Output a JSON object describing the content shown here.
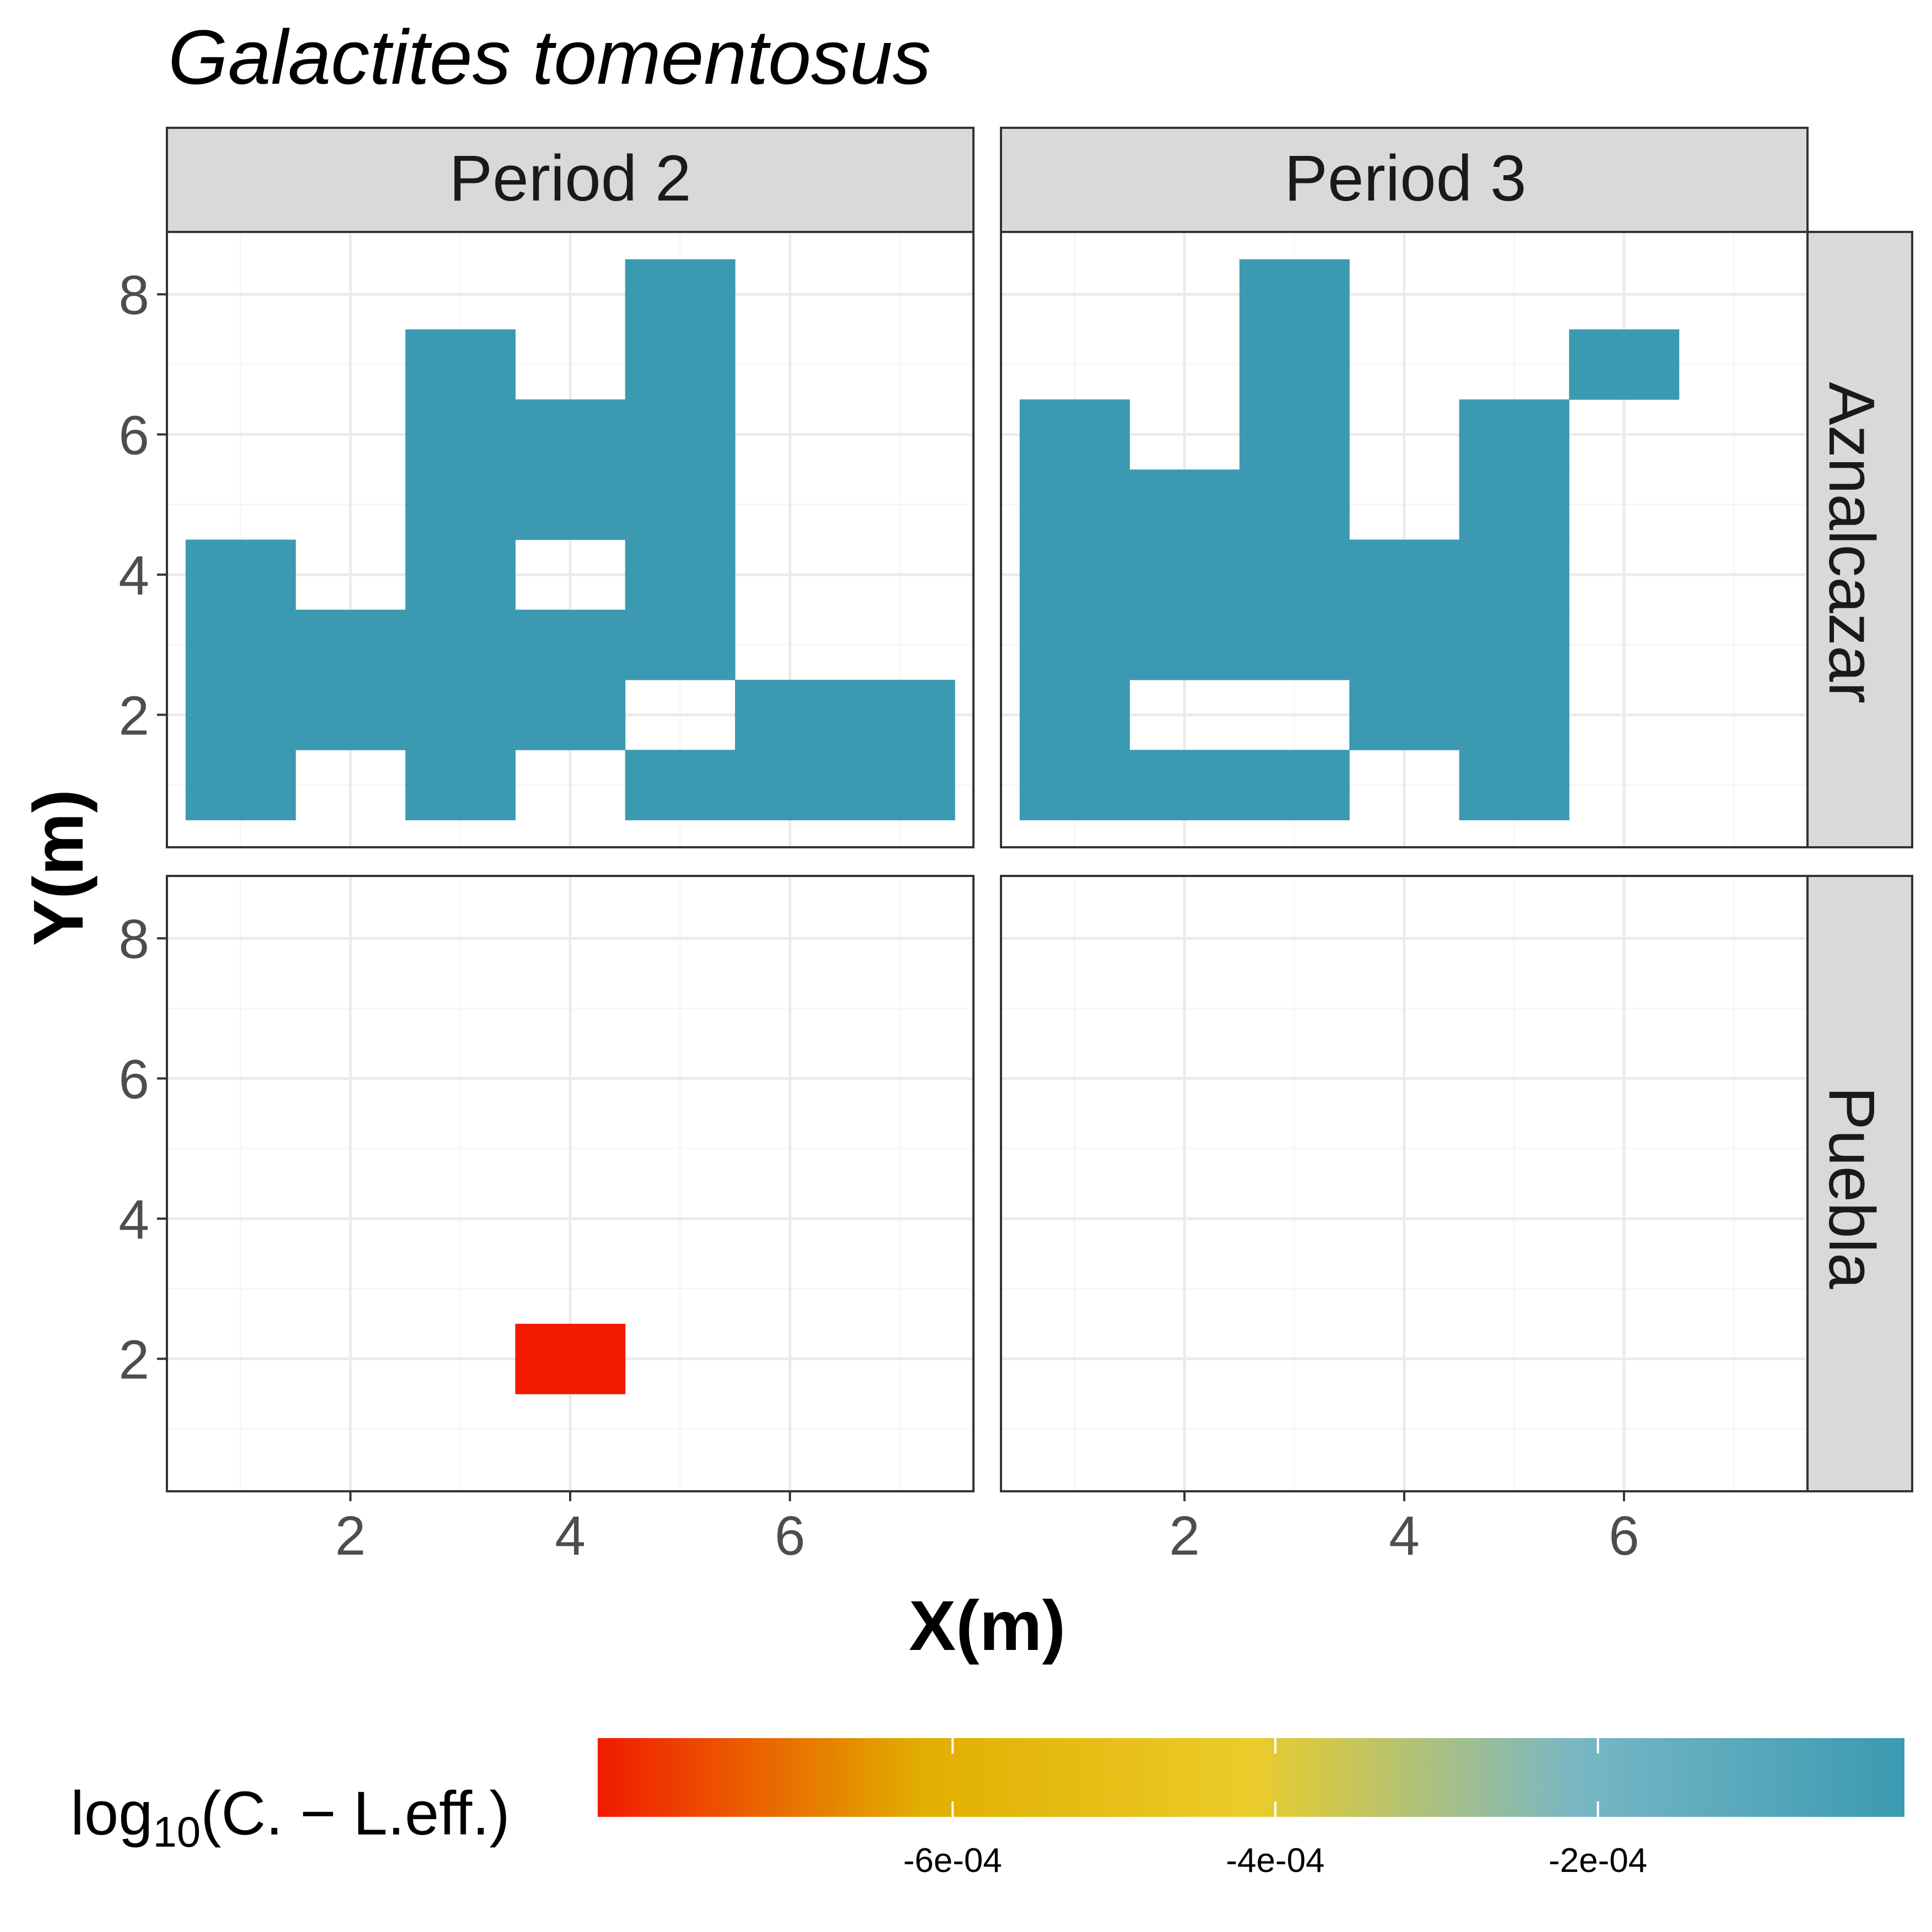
{
  "chart_data": {
    "type": "heatmap",
    "title": "Galactites tomentosus",
    "xlabel": "X(m)",
    "ylabel": "Y(m)",
    "x_ticks": [
      2,
      4,
      6
    ],
    "y_ticks": [
      2,
      4,
      6,
      8
    ],
    "xlim": [
      0.33,
      7.67
    ],
    "ylim": [
      0.11,
      8.89
    ],
    "grid": true,
    "cols": [
      "Period 2",
      "Period 3"
    ],
    "rows": [
      "Aznalcazar",
      "Puebla"
    ],
    "panels": [
      {
        "col": "Period 2",
        "row": "Aznalcazar",
        "cells": [
          [
            1,
            1
          ],
          [
            1,
            2
          ],
          [
            1,
            3
          ],
          [
            1,
            4
          ],
          [
            2,
            2
          ],
          [
            2,
            3
          ],
          [
            3,
            1
          ],
          [
            3,
            2
          ],
          [
            3,
            3
          ],
          [
            3,
            4
          ],
          [
            3,
            5
          ],
          [
            3,
            6
          ],
          [
            3,
            7
          ],
          [
            4,
            2
          ],
          [
            4,
            3
          ],
          [
            4,
            5
          ],
          [
            4,
            6
          ],
          [
            5,
            1
          ],
          [
            5,
            3
          ],
          [
            5,
            4
          ],
          [
            5,
            5
          ],
          [
            5,
            6
          ],
          [
            5,
            7
          ],
          [
            5,
            8
          ],
          [
            6,
            1
          ],
          [
            6,
            2
          ],
          [
            7,
            1
          ],
          [
            7,
            2
          ]
        ],
        "value": -1e-05
      },
      {
        "col": "Period 3",
        "row": "Aznalcazar",
        "cells": [
          [
            1,
            1
          ],
          [
            1,
            2
          ],
          [
            1,
            3
          ],
          [
            1,
            4
          ],
          [
            1,
            5
          ],
          [
            1,
            6
          ],
          [
            2,
            1
          ],
          [
            2,
            3
          ],
          [
            2,
            4
          ],
          [
            2,
            5
          ],
          [
            3,
            1
          ],
          [
            3,
            3
          ],
          [
            3,
            4
          ],
          [
            3,
            5
          ],
          [
            3,
            6
          ],
          [
            3,
            7
          ],
          [
            3,
            8
          ],
          [
            4,
            2
          ],
          [
            4,
            3
          ],
          [
            4,
            4
          ],
          [
            5,
            1
          ],
          [
            5,
            2
          ],
          [
            5,
            3
          ],
          [
            5,
            4
          ],
          [
            5,
            5
          ],
          [
            5,
            6
          ],
          [
            6,
            7
          ]
        ],
        "value": -1e-05
      },
      {
        "col": "Period 2",
        "row": "Puebla",
        "cells": [
          [
            4,
            2
          ]
        ],
        "value": -0.00082
      },
      {
        "col": "Period 3",
        "row": "Puebla",
        "cells": [],
        "value": null
      }
    ],
    "legend": {
      "title_main": "log",
      "title_sub": "10",
      "title_rest": "(C. − L.eff.)",
      "range": [
        -0.00082,
        -1e-05
      ],
      "ticks": [
        "-6e-04",
        "-4e-04",
        "-2e-04"
      ],
      "tick_values": [
        -0.0006,
        -0.0004,
        -0.0002
      ],
      "colors": [
        "#F21A00",
        "#E1AF00",
        "#EBCC2A",
        "#78B7C5",
        "#3B9AB2"
      ],
      "placement": "bottom"
    }
  },
  "colors": {
    "strip_fill": "#D9D9D9",
    "border": "#333333",
    "grid_major": "#EBEBEB",
    "grid_minor": "#F5F5F5"
  }
}
